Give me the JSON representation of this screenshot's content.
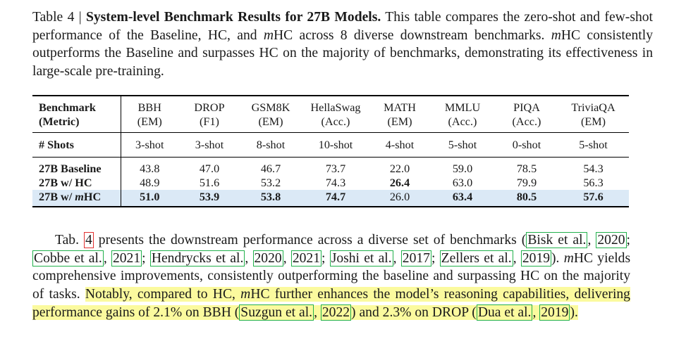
{
  "caption": {
    "label": "Table 4 |",
    "title": "System-level Benchmark Results for 27B Models.",
    "body_pre": "This table compares the zero-shot and few-shot performance of the Baseline, HC, and ",
    "math": "m",
    "body_mid": "HC across 8 diverse downstream benchmarks. ",
    "body_mid2": "HC consistently outperforms the Baseline and surpasses HC on the majority of benchmarks, demonstrating its effectiveness in large-scale pre-training."
  },
  "table": {
    "header_col1_line1": "Benchmark",
    "header_col1_line2": "(Metric)",
    "columns": [
      {
        "name": "BBH",
        "metric": "(EM)",
        "shots": "3-shot"
      },
      {
        "name": "DROP",
        "metric": "(F1)",
        "shots": "3-shot"
      },
      {
        "name": "GSM8K",
        "metric": "(EM)",
        "shots": "8-shot"
      },
      {
        "name": "HellaSwag",
        "metric": "(Acc.)",
        "shots": "10-shot"
      },
      {
        "name": "MATH",
        "metric": "(EM)",
        "shots": "4-shot"
      },
      {
        "name": "MMLU",
        "metric": "(Acc.)",
        "shots": "5-shot"
      },
      {
        "name": "PIQA",
        "metric": "(Acc.)",
        "shots": "0-shot"
      },
      {
        "name": "TriviaQA",
        "metric": "(EM)",
        "shots": "5-shot"
      }
    ],
    "shots_label": "# Shots",
    "rows": [
      {
        "label": "27B Baseline",
        "values": [
          "43.8",
          "47.0",
          "46.7",
          "73.7",
          "22.0",
          "59.0",
          "78.5",
          "54.3"
        ]
      },
      {
        "label": "27B w/ HC",
        "values": [
          "48.9",
          "51.6",
          "53.2",
          "74.3",
          "26.4",
          "63.0",
          "79.9",
          "56.3"
        ]
      },
      {
        "label_pre": "27B w/ ",
        "label_math": "m",
        "label_post": "HC",
        "values": [
          "51.0",
          "53.9",
          "53.8",
          "74.7",
          "26.0",
          "63.4",
          "80.5",
          "57.6"
        ]
      }
    ]
  },
  "paragraph": {
    "p1": "Tab. ",
    "ref": "4",
    "p2": " presents the downstream performance across a diverse set of benchmarks (",
    "c1": "Bisk et al.",
    "c1y": "2020",
    "c2": "Cobbe et al.",
    "c2y": "2021",
    "c3": "Hendrycks et al.",
    "c3y1": "2020",
    "c3y2": "2021",
    "c4": "Joshi et al.",
    "c4y": "2017",
    "c5": "Zellers et al.",
    "c5y": "2019",
    "p3": "). ",
    "math": "m",
    "p4": "HC yields comprehensive improvements, consistently outperforming the baseline and surpassing HC on the majority of tasks. ",
    "h1": "Notably, compared to HC, ",
    "h2": "HC further enhances the model’s reasoning capabilities, delivering performance gains of 2.1% on BBH (",
    "c6": "Suzgun et al.",
    "c6y": "2022",
    "h3": ") and 2.3% on DROP (",
    "c7": "Dua et al.",
    "c7y": "2019",
    "h4": ")."
  }
}
